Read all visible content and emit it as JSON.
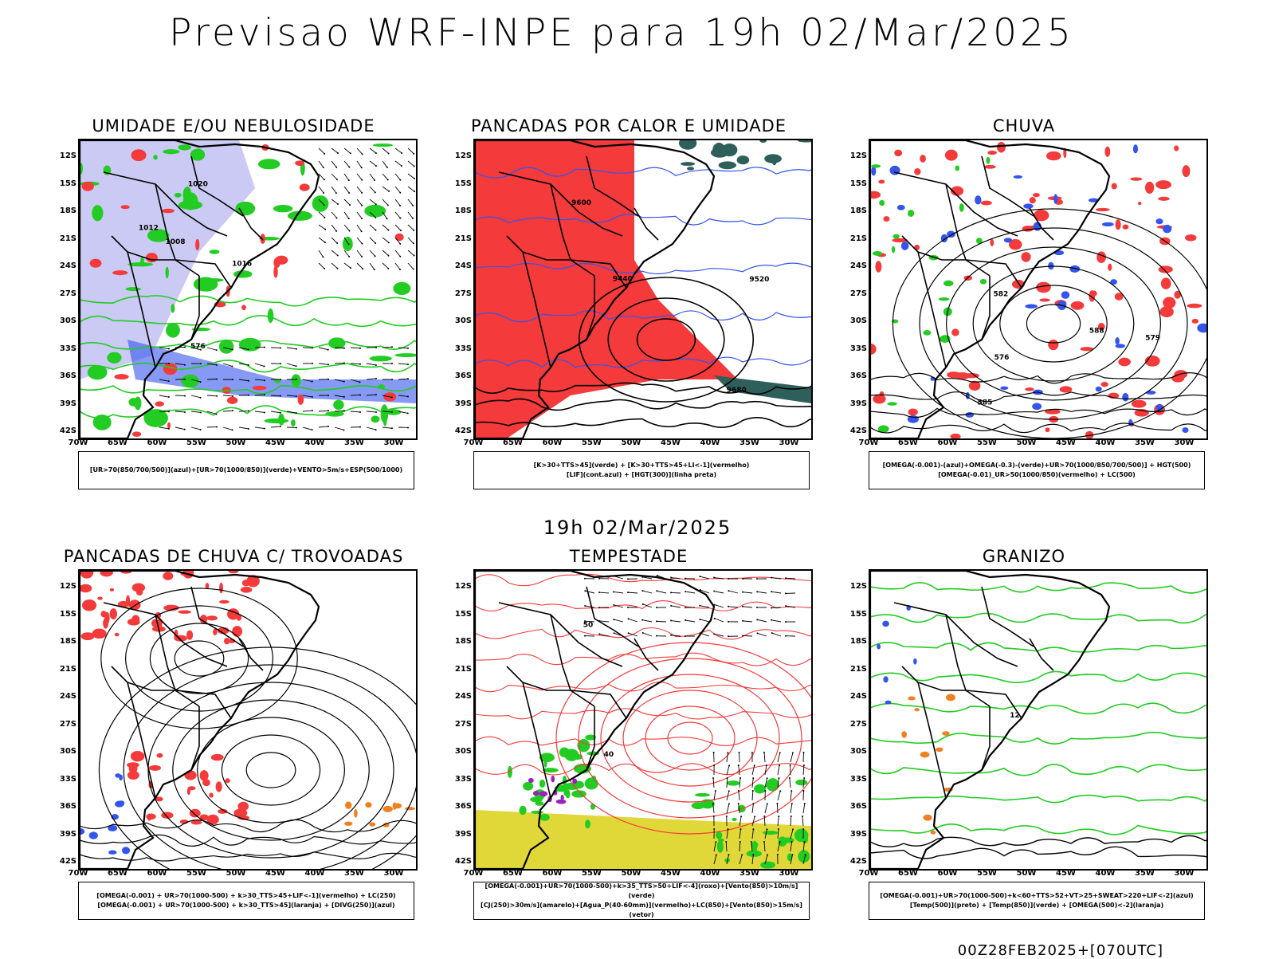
{
  "title": "Previsao WRF-INPE  para 19h 02/Mar/2025",
  "middle_time": "19h 02/Mar/2025",
  "footer": "00Z28FEB2025+[070UTC]",
  "latitude_labels": [
    "12S",
    "15S",
    "18S",
    "21S",
    "24S",
    "27S",
    "30S",
    "33S",
    "36S",
    "39S",
    "42S"
  ],
  "longitude_labels": [
    "70W",
    "65W",
    "60W",
    "55W",
    "50W",
    "45W",
    "40W",
    "35W",
    "30W"
  ],
  "colors": {
    "red": "#f43a3a",
    "green": "#22cc22",
    "blue": "#3355ee",
    "lavender": "#b3b3f0",
    "teal": "#2f5f5a",
    "yellow": "#e0d838",
    "orange": "#f08020",
    "purple": "#9922bb"
  },
  "panels": [
    {
      "title": "UMIDADE E/OU NEBULOSIDADE",
      "legend": [
        "[UR>70(850/700/500)](azul)+[UR>70(1000/850)](verde)+VENTO>5m/s+ESP(500/1000)"
      ],
      "contour_labels": [
        "1008",
        "1012",
        "1016",
        "1020",
        "576"
      ]
    },
    {
      "title": "PANCADAS POR CALOR E UMIDADE",
      "legend": [
        "[K>30+TTS>45](verde) + [K>30+TTS>45+LI<-1](vermelho)",
        "[LIF](cont.azul) + [HGT(300)](linha preta)"
      ],
      "contour_labels": [
        "9600",
        "9520",
        "9440",
        "9680"
      ]
    },
    {
      "title": "CHUVA",
      "legend": [
        "[OMEGA(-0.001)-(azul)+OMEGA(-0.3)-(verde)+UR>70(1000/850/700/500)] + HGT(500)",
        "[OMEGA(-0.01)_UR>50(1000/850)(vermelho) + LC(500)"
      ],
      "contour_labels": [
        "585",
        "588",
        "582",
        "576",
        "579"
      ]
    },
    {
      "title": "PANCADAS DE CHUVA C/ TROVOADAS",
      "legend": [
        "[OMEGA(-0.001) + UR>70(1000-500) + k>30_TTS>45+LIF<-1](vermelho) + LC(250)",
        "[OMEGA(-0.001) + UR>70(1000-500) + k>30_TTS>45](laranja) + [DIVG(250)](azul)"
      ],
      "contour_labels": []
    },
    {
      "title": "TEMPESTADE",
      "legend": [
        "[OMEGA(-0.001)+UR>70(1000-500)+k>35_TTS>50+LIF<-4](roxo)+[Vento(850)>10m/s](verde)",
        "[CJ(250)>30m/s](amarelo)+[Agua_P(40-60mm)](vermelho)+LC(850)+[Vento(850)>15m/s](vetor)"
      ],
      "contour_labels": [
        "40",
        "50"
      ]
    },
    {
      "title": "GRANIZO",
      "legend": [
        "[OMEGA(-0.001)+UR>70(1000-500)+k<60+TTS>52+VT>25+SWEAT>220+LIF<-2](azul)",
        "[Temp(500)](preto) + [Temp(850)](verde) + [OMEGA(500)<-2](laranja)"
      ],
      "contour_labels": [
        "12"
      ]
    }
  ]
}
